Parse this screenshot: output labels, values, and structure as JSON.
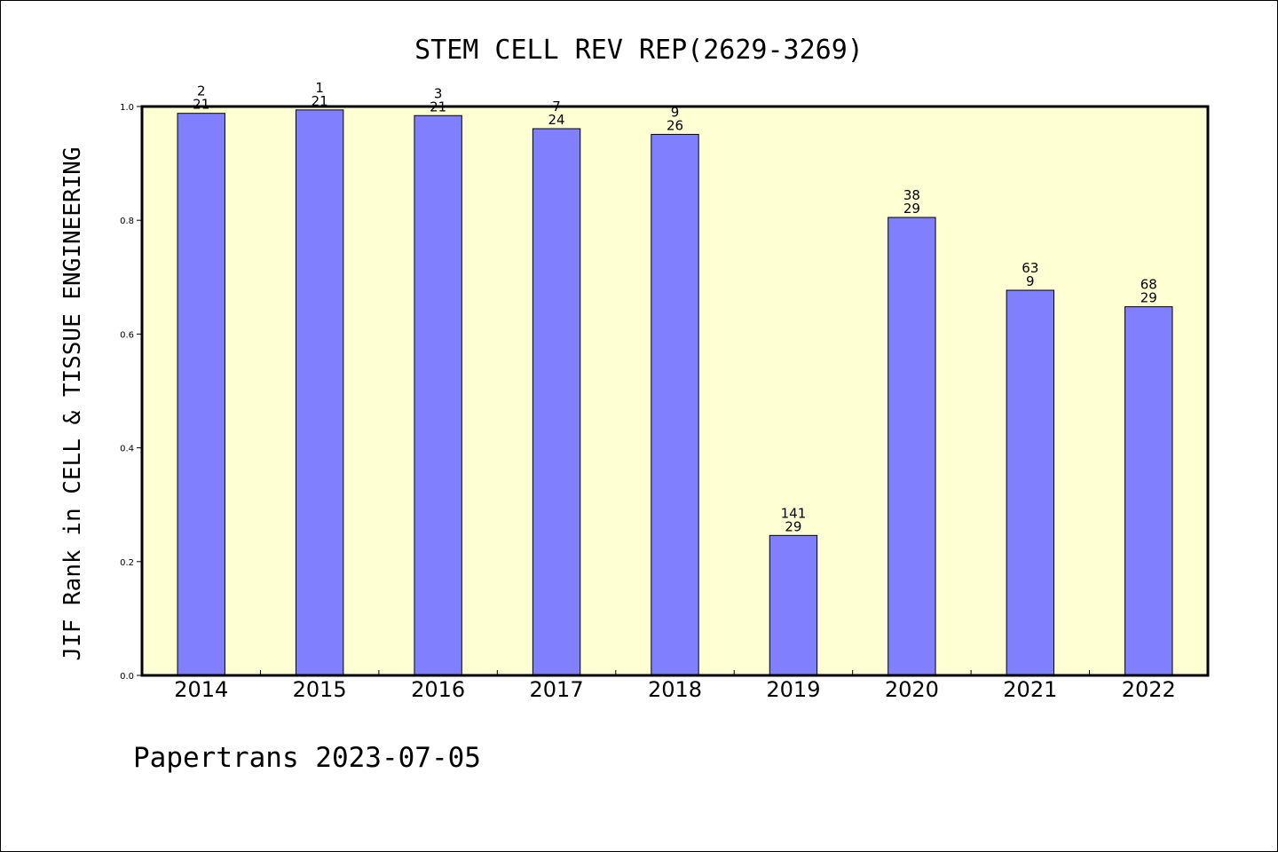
{
  "chart_data": {
    "type": "bar",
    "title": "STEM CELL REV REP(2629-3269)",
    "xlabel": "",
    "ylabel": "JIF Rank in CELL & TISSUE ENGINEERING",
    "categories": [
      "2014",
      "2015",
      "2016",
      "2017",
      "2018",
      "2019",
      "2020",
      "2021",
      "2022"
    ],
    "values": [
      0.988,
      0.994,
      0.984,
      0.961,
      0.951,
      0.246,
      0.805,
      0.677,
      0.648
    ],
    "bar_labels": [
      {
        "rank": "2",
        "total": "21"
      },
      {
        "rank": "1",
        "total": "21"
      },
      {
        "rank": "3",
        "total": "21"
      },
      {
        "rank": "7",
        "total": "24"
      },
      {
        "rank": "9",
        "total": "26"
      },
      {
        "rank": "141",
        "total": "29"
      },
      {
        "rank": "38",
        "total": "29"
      },
      {
        "rank": "63",
        "total": "9"
      },
      {
        "rank": "68",
        "total": "29"
      }
    ],
    "ylim": [
      0,
      1.0
    ],
    "yticks": [
      "0.0",
      "0.2",
      "0.4",
      "0.6",
      "0.8",
      "1.0"
    ],
    "grid": false,
    "colors": {
      "bar": "#8080ff",
      "plot_background": "#ffffd4",
      "page_background": "#ffffff"
    }
  },
  "footer": "Papertrans 2023-07-05"
}
